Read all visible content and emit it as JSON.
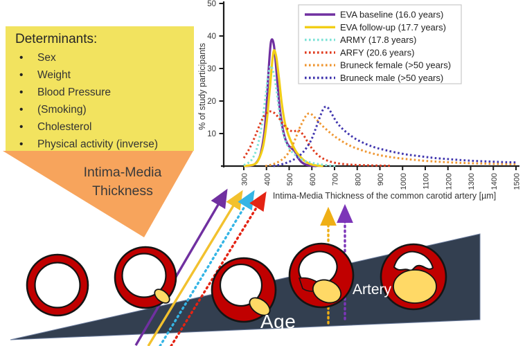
{
  "determinants": {
    "title": "Determinants:",
    "items": [
      "Sex",
      "Weight",
      "Blood Pressure",
      "(Smoking)",
      "Cholesterol",
      "Physical activity (inverse)"
    ]
  },
  "funnel": {
    "line1": "Intima-Media",
    "line2": "Thickness"
  },
  "diagram": {
    "age_label": "Age",
    "artery_label": "Artery"
  },
  "colors": {
    "determinants_box_bg": "#F2E35F",
    "funnel_bg": "#F7A45C",
    "age_ramp": "#333F50",
    "artery_wall": "#C00000",
    "plaque": "#FFD966",
    "lumen": "#FFFFFF",
    "axis": "#1a1a1a"
  },
  "chart_data": {
    "type": "line",
    "title": "",
    "xlabel": "Intima-Media Thickness of the common carotid artery [µm]",
    "ylabel": "% of study participants",
    "xlim": [
      250,
      1550
    ],
    "ylim": [
      0,
      50
    ],
    "x_ticks": [
      300,
      400,
      500,
      600,
      700,
      800,
      900,
      1000,
      1100,
      1200,
      1300,
      1400,
      1500
    ],
    "y_ticks": [
      10,
      20,
      30,
      40,
      50
    ],
    "grid": false,
    "legend_position": "top-right",
    "series": [
      {
        "name": "EVA baseline (16.0 years)",
        "style": "solid",
        "color": "#7030A0",
        "points": [
          [
            300,
            0
          ],
          [
            340,
            0.3
          ],
          [
            360,
            1.5
          ],
          [
            375,
            4
          ],
          [
            390,
            10
          ],
          [
            400,
            18
          ],
          [
            410,
            30
          ],
          [
            420,
            38.3
          ],
          [
            432,
            37.5
          ],
          [
            443,
            30
          ],
          [
            455,
            20
          ],
          [
            468,
            13
          ],
          [
            480,
            9
          ],
          [
            495,
            6.5
          ],
          [
            510,
            5.5
          ],
          [
            525,
            4.5
          ],
          [
            540,
            2.5
          ],
          [
            555,
            1.2
          ],
          [
            575,
            0.4
          ],
          [
            600,
            0.1
          ],
          [
            620,
            0
          ]
        ]
      },
      {
        "name": "EVA follow-up (17.7 years)",
        "style": "solid",
        "color": "#F2CE16",
        "points": [
          [
            300,
            0
          ],
          [
            345,
            0.5
          ],
          [
            365,
            2
          ],
          [
            385,
            6
          ],
          [
            400,
            13
          ],
          [
            415,
            24
          ],
          [
            430,
            34.8
          ],
          [
            442,
            34
          ],
          [
            455,
            27
          ],
          [
            468,
            19
          ],
          [
            482,
            13
          ],
          [
            497,
            9.5
          ],
          [
            512,
            7
          ],
          [
            530,
            4.5
          ],
          [
            550,
            2.8
          ],
          [
            570,
            1.5
          ],
          [
            595,
            0.6
          ],
          [
            620,
            0.2
          ],
          [
            650,
            0
          ]
        ]
      },
      {
        "name": "ARMY (17.8 years)",
        "style": "dotted",
        "color": "#7FE3D7",
        "points": [
          [
            300,
            0.3
          ],
          [
            320,
            1
          ],
          [
            340,
            2.5
          ],
          [
            360,
            6
          ],
          [
            378,
            12
          ],
          [
            395,
            21
          ],
          [
            408,
            28
          ],
          [
            418,
            30.8
          ],
          [
            430,
            29
          ],
          [
            443,
            24
          ],
          [
            456,
            17
          ],
          [
            470,
            11
          ],
          [
            485,
            7.5
          ],
          [
            500,
            5.5
          ],
          [
            520,
            3.8
          ],
          [
            545,
            2.5
          ],
          [
            570,
            1.6
          ],
          [
            600,
            1
          ],
          [
            640,
            0.5
          ],
          [
            680,
            0.2
          ],
          [
            710,
            0
          ]
        ]
      },
      {
        "name": "ARFY (20.6 years)",
        "style": "dotted",
        "color": "#DF3A1D",
        "points": [
          [
            300,
            2.5
          ],
          [
            318,
            4.5
          ],
          [
            336,
            7
          ],
          [
            355,
            10
          ],
          [
            375,
            13.5
          ],
          [
            395,
            16
          ],
          [
            415,
            16.8
          ],
          [
            435,
            16.3
          ],
          [
            452,
            15
          ],
          [
            468,
            13.5
          ],
          [
            485,
            12
          ],
          [
            502,
            11
          ],
          [
            520,
            10.7
          ],
          [
            538,
            11
          ],
          [
            552,
            10.4
          ],
          [
            568,
            9
          ],
          [
            585,
            7
          ],
          [
            605,
            5
          ],
          [
            630,
            3.2
          ],
          [
            658,
            2
          ],
          [
            690,
            1.2
          ],
          [
            730,
            0.7
          ],
          [
            780,
            0.4
          ],
          [
            840,
            0.25
          ],
          [
            900,
            0.15
          ],
          [
            950,
            0.1
          ]
        ]
      },
      {
        "name": "Bruneck female (>50 years)",
        "style": "dotted",
        "color": "#EF9733",
        "points": [
          [
            395,
            0
          ],
          [
            430,
            0.6
          ],
          [
            460,
            1.6
          ],
          [
            485,
            3
          ],
          [
            505,
            5
          ],
          [
            525,
            8
          ],
          [
            545,
            11.5
          ],
          [
            562,
            14
          ],
          [
            578,
            15.8
          ],
          [
            592,
            16.2
          ],
          [
            608,
            15.3
          ],
          [
            625,
            14
          ],
          [
            645,
            12.5
          ],
          [
            668,
            11
          ],
          [
            692,
            9.6
          ],
          [
            718,
            8.3
          ],
          [
            748,
            7
          ],
          [
            780,
            5.9
          ],
          [
            815,
            5
          ],
          [
            850,
            4.2
          ],
          [
            890,
            3.5
          ],
          [
            935,
            2.9
          ],
          [
            985,
            2.4
          ],
          [
            1040,
            2
          ],
          [
            1100,
            1.6
          ],
          [
            1170,
            1.3
          ],
          [
            1250,
            1
          ],
          [
            1340,
            0.8
          ],
          [
            1430,
            0.65
          ],
          [
            1500,
            0.6
          ]
        ]
      },
      {
        "name": "Bruneck male (>50 years)",
        "style": "dotted",
        "color": "#4136AE",
        "points": [
          [
            430,
            0
          ],
          [
            465,
            0.5
          ],
          [
            495,
            1.2
          ],
          [
            525,
            2.2
          ],
          [
            552,
            3.6
          ],
          [
            575,
            5.5
          ],
          [
            597,
            8
          ],
          [
            617,
            11.5
          ],
          [
            635,
            15
          ],
          [
            650,
            17.5
          ],
          [
            662,
            18.3
          ],
          [
            675,
            17.6
          ],
          [
            690,
            15.8
          ],
          [
            705,
            14
          ],
          [
            722,
            12.4
          ],
          [
            742,
            11
          ],
          [
            765,
            9.7
          ],
          [
            792,
            8.4
          ],
          [
            822,
            7.3
          ],
          [
            855,
            6.3
          ],
          [
            890,
            5.5
          ],
          [
            930,
            4.8
          ],
          [
            975,
            4.1
          ],
          [
            1025,
            3.5
          ],
          [
            1080,
            3
          ],
          [
            1140,
            2.5
          ],
          [
            1210,
            2.1
          ],
          [
            1290,
            1.7
          ],
          [
            1380,
            1.4
          ],
          [
            1460,
            1.2
          ],
          [
            1500,
            1.15
          ]
        ]
      }
    ]
  }
}
